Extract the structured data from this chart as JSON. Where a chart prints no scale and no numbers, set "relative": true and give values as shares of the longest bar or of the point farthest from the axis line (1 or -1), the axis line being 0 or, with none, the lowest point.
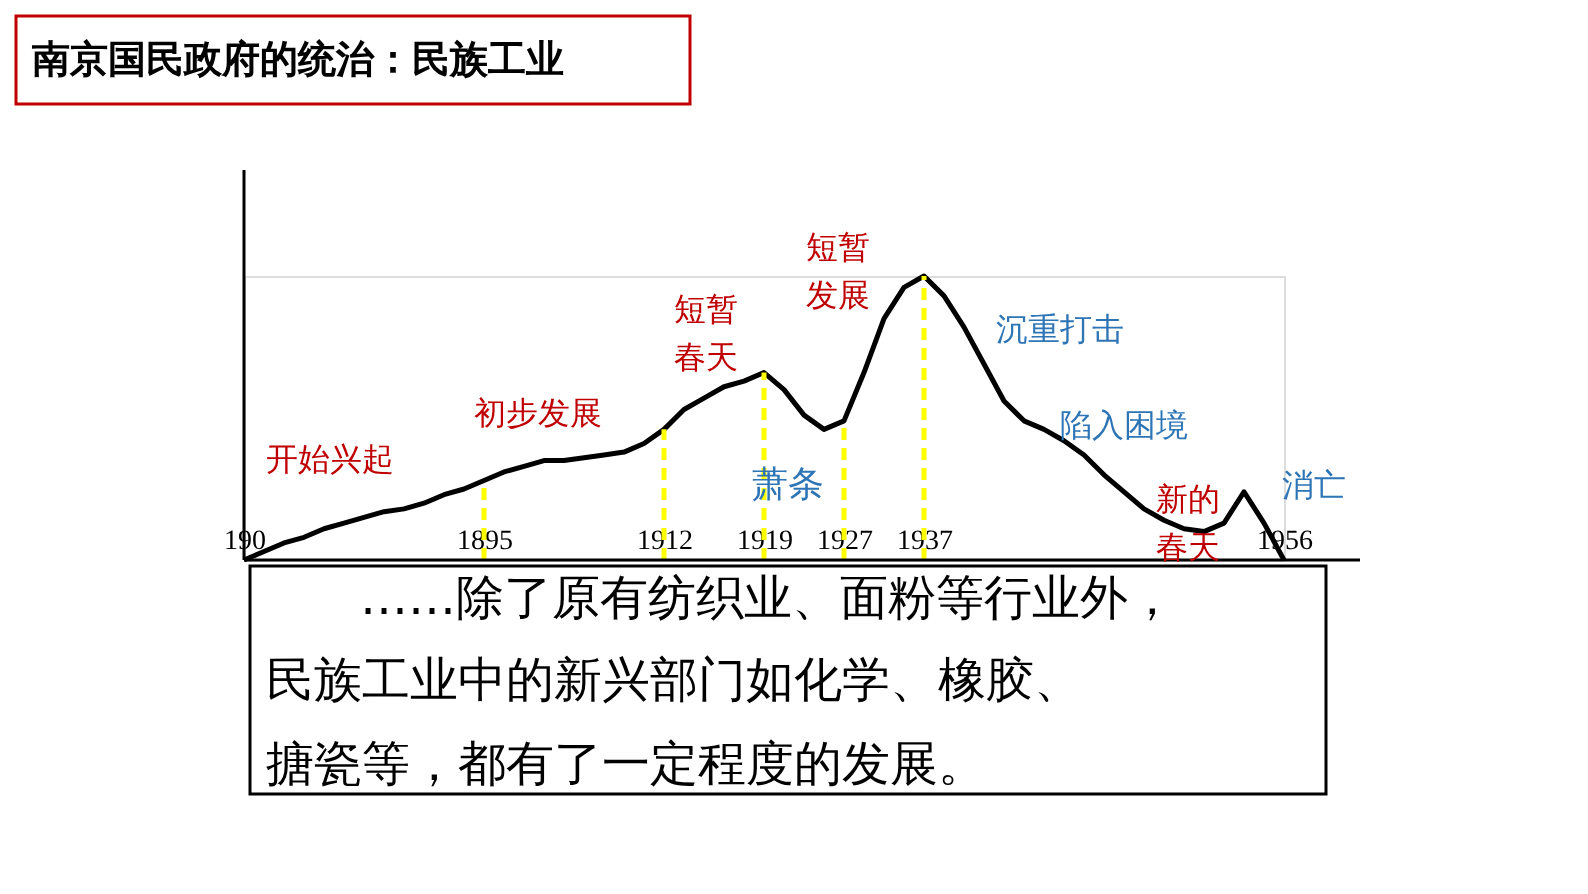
{
  "chart_data": {
    "type": "line",
    "title": "南京国民政府的统治：民族工业",
    "relative": true,
    "categories": [
      "190",
      null,
      null,
      null,
      null,
      null,
      null,
      null,
      null,
      null,
      null,
      null,
      "1895",
      null,
      null,
      null,
      null,
      null,
      null,
      null,
      null,
      "1912",
      null,
      null,
      null,
      null,
      "1919",
      null,
      null,
      null,
      "1927",
      null,
      null,
      null,
      "1937",
      null,
      null,
      null,
      null,
      null,
      null,
      null,
      null,
      null,
      null,
      null,
      null,
      null,
      null,
      null,
      null,
      null,
      "1956"
    ],
    "series": [
      {
        "color": "#000000",
        "values": [
          0,
          0.03,
          0.06,
          0.08,
          0.11,
          0.13,
          0.15,
          0.17,
          0.18,
          0.2,
          0.23,
          0.25,
          0.28,
          0.31,
          0.33,
          0.35,
          0.35,
          0.36,
          0.37,
          0.38,
          0.41,
          0.46,
          0.53,
          0.57,
          0.61,
          0.63,
          0.66,
          0.6,
          0.51,
          0.46,
          0.49,
          0.66,
          0.85,
          0.96,
          1,
          0.93,
          0.82,
          0.69,
          0.56,
          0.49,
          0.46,
          0.42,
          0.37,
          0.3,
          0.24,
          0.18,
          0.14,
          0.11,
          0.1,
          0.13,
          0.24,
          0.13,
          0
        ]
      }
    ],
    "ref_lines": [
      {
        "axis": "x",
        "value": "1895",
        "color": "#ffff00",
        "line_style": "dashed"
      },
      {
        "axis": "x",
        "value": "1912",
        "color": "#ffff00",
        "line_style": "dashed"
      },
      {
        "axis": "x",
        "value": "1919",
        "color": "#ffff00",
        "line_style": "dashed"
      },
      {
        "axis": "x",
        "value": "1927",
        "color": "#ffff00",
        "line_style": "dashed"
      },
      {
        "axis": "x",
        "value": "1937",
        "color": "#ffff00",
        "line_style": "dashed"
      }
    ],
    "annotations": [
      "开始兴起",
      "初步发展",
      "短暂春天",
      "短暂发展",
      "萧条",
      "沉重打击",
      "陷入困境",
      "新的春天",
      "消亡",
      "……除了原有纺织业、面粉等行业外，",
      "民族工业中的新兴部门如化学、橡胶、",
      "搪瓷等，都有了一定程度的发展。"
    ]
  }
}
